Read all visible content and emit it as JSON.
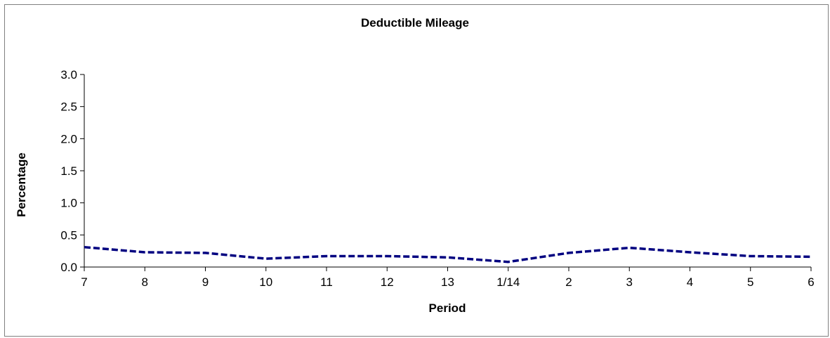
{
  "chart_data": {
    "type": "line",
    "title": "Deductible Mileage",
    "xlabel": "Period",
    "ylabel": "Percentage",
    "categories": [
      "7",
      "8",
      "9",
      "10",
      "11",
      "12",
      "13",
      "1/14",
      "2",
      "3",
      "4",
      "5",
      "6"
    ],
    "series": [
      {
        "values": [
          0.31,
          0.23,
          0.22,
          0.13,
          0.17,
          0.17,
          0.15,
          0.08,
          0.22,
          0.3,
          0.23,
          0.17,
          0.16
        ],
        "color": "#000080",
        "style": "dashed"
      }
    ],
    "ylim": [
      0,
      3.0
    ],
    "yticks": [
      "0.0",
      "0.5",
      "1.0",
      "1.5",
      "2.0",
      "2.5",
      "3.0"
    ],
    "grid": false,
    "legend": "none"
  }
}
